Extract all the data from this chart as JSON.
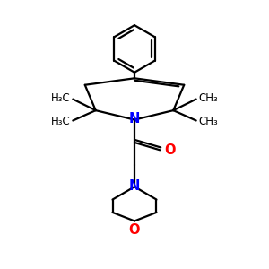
{
  "bg_color": "#ffffff",
  "bond_color": "#000000",
  "N_color": "#0000ff",
  "O_color": "#ff0000",
  "line_width": 1.6,
  "font_size": 8.5,
  "fig_size": [
    3.0,
    3.0
  ],
  "dpi": 100,
  "xlim": [
    0,
    10
  ],
  "ylim": [
    0,
    10
  ]
}
